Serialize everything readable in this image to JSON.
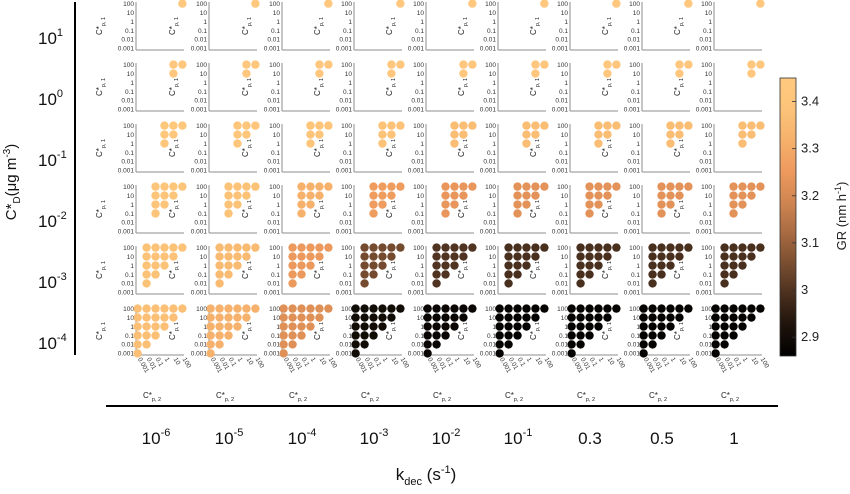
{
  "chart_data": {
    "type": "scatter",
    "layout": "small-multiples grid",
    "rows": {
      "label_main": "C*",
      "label_sub": "D",
      "label_unit": "(μg m",
      "label_unit_sup": "-3",
      "label_close": ")",
      "values": [
        {
          "base": "10",
          "exp": "1"
        },
        {
          "base": "10",
          "exp": "0"
        },
        {
          "base": "10",
          "exp": "-1"
        },
        {
          "base": "10",
          "exp": "-2"
        },
        {
          "base": "10",
          "exp": "-3"
        },
        {
          "base": "10",
          "exp": "-4"
        }
      ]
    },
    "columns": {
      "label_main": "k",
      "label_sub": "dec",
      "label_unit": " (s",
      "label_unit_sup": "-1",
      "label_close": ")",
      "values": [
        {
          "base": "10",
          "exp": "-6"
        },
        {
          "base": "10",
          "exp": "-5"
        },
        {
          "base": "10",
          "exp": "-4"
        },
        {
          "base": "10",
          "exp": "-3"
        },
        {
          "base": "10",
          "exp": "-2"
        },
        {
          "base": "10",
          "exp": "-1"
        },
        {
          "base": "0.3",
          "exp": ""
        },
        {
          "base": "0.5",
          "exp": ""
        },
        {
          "base": "1",
          "exp": ""
        }
      ]
    },
    "panel_axes": {
      "x_label": "C*",
      "x_label_sub": "p, 2",
      "y_label": "C*",
      "y_label_sub": "p, 1",
      "ticks": [
        "0.001",
        "0.01",
        "0.1",
        "1",
        "10",
        "100"
      ],
      "scale": "log",
      "range": [
        0.001,
        100
      ]
    },
    "colorbar": {
      "label": "GR (nm h",
      "label_sup": "-1",
      "label_close": ")",
      "min": 2.86,
      "max": 3.45,
      "ticks": [
        "2.9",
        "3",
        "3.1",
        "3.2",
        "3.3",
        "3.4"
      ],
      "tick_values": [
        2.9,
        3.0,
        3.1,
        3.2,
        3.3,
        3.4
      ],
      "colormap": "copper",
      "stops": [
        "#000000",
        "#1e130c",
        "#4a2f1e",
        "#7a4e31",
        "#a96b42",
        "#d08651",
        "#ee9a5e",
        "#f6b16c",
        "#fcc479",
        "#ffc97f"
      ]
    },
    "panel_min_log": [
      2,
      1,
      0,
      -1,
      -2,
      -3
    ],
    "gr_values": [
      [
        3.44,
        3.44,
        3.44,
        3.44,
        3.44,
        3.44,
        3.44,
        3.44,
        3.44
      ],
      [
        3.43,
        3.43,
        3.43,
        3.43,
        3.43,
        3.43,
        3.43,
        3.43,
        3.43
      ],
      [
        3.42,
        3.41,
        3.4,
        3.38,
        3.36,
        3.36,
        3.36,
        3.36,
        3.36
      ],
      [
        3.4,
        3.38,
        3.32,
        3.26,
        3.24,
        3.23,
        3.23,
        3.23,
        3.23
      ],
      [
        3.38,
        3.35,
        3.25,
        3.05,
        3.0,
        2.99,
        2.99,
        2.99,
        2.99
      ],
      [
        3.37,
        3.32,
        3.22,
        2.9,
        2.88,
        2.87,
        2.87,
        2.87,
        2.87
      ]
    ]
  }
}
